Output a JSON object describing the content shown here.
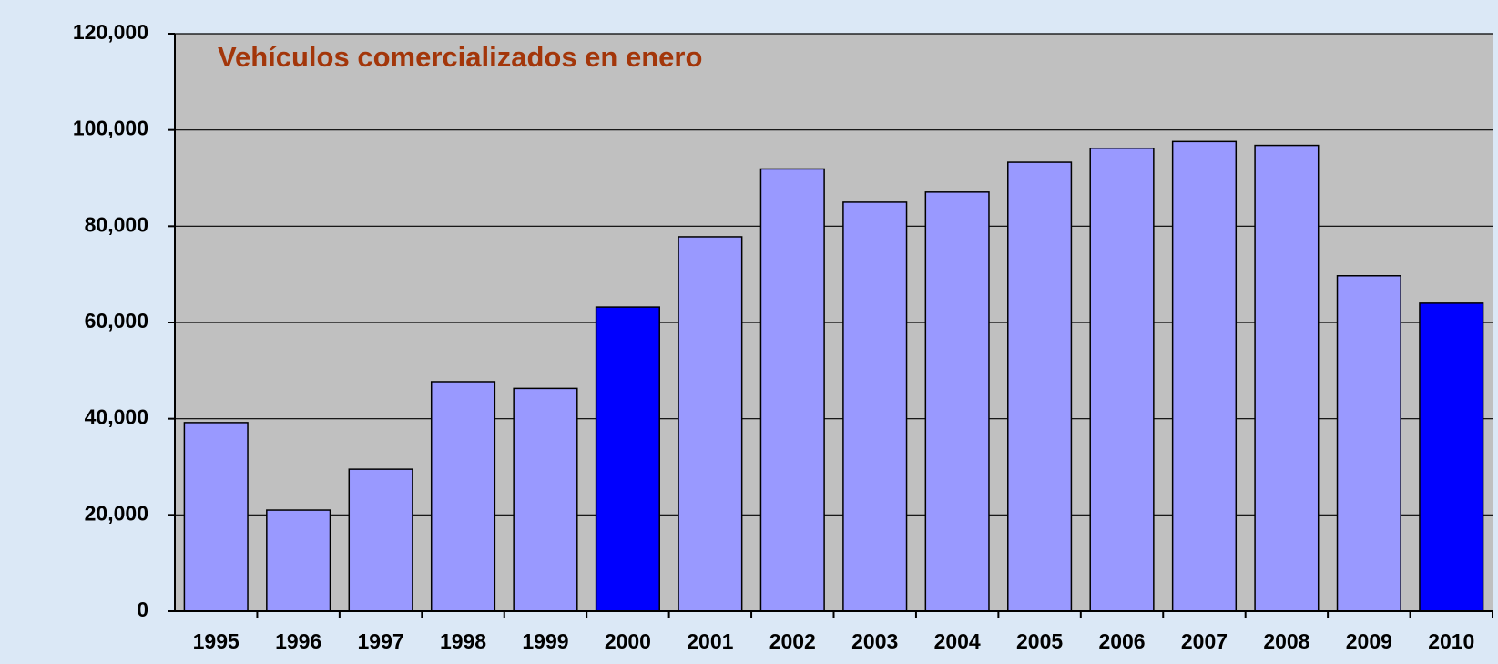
{
  "chart_data": {
    "type": "bar",
    "title": "Vehículos comercializados en enero",
    "categories": [
      "1995",
      "1996",
      "1997",
      "1998",
      "1999",
      "2000",
      "2001",
      "2002",
      "2003",
      "2004",
      "2005",
      "2006",
      "2007",
      "2008",
      "2009",
      "2010"
    ],
    "values": [
      39200,
      21000,
      29500,
      47700,
      46300,
      63200,
      77800,
      91900,
      85000,
      87100,
      93300,
      96200,
      97600,
      96800,
      69700,
      64000
    ],
    "colors": [
      "#9999ff",
      "#9999ff",
      "#9999ff",
      "#9999ff",
      "#9999ff",
      "#0000ff",
      "#9999ff",
      "#9999ff",
      "#9999ff",
      "#9999ff",
      "#9999ff",
      "#9999ff",
      "#9999ff",
      "#9999ff",
      "#9999ff",
      "#0000ff"
    ],
    "ylim": [
      0,
      120000
    ],
    "yticks": [
      0,
      {
        "value": 20000,
        "label": "20,000"
      },
      {
        "value": 40000,
        "label": "40,000"
      },
      {
        "value": 60000,
        "label": "60,000"
      },
      {
        "value": 80000,
        "label": "80,000"
      },
      {
        "value": 100000,
        "label": "100,000"
      },
      {
        "value": 120000,
        "label": "120,000"
      }
    ],
    "grid": true
  }
}
